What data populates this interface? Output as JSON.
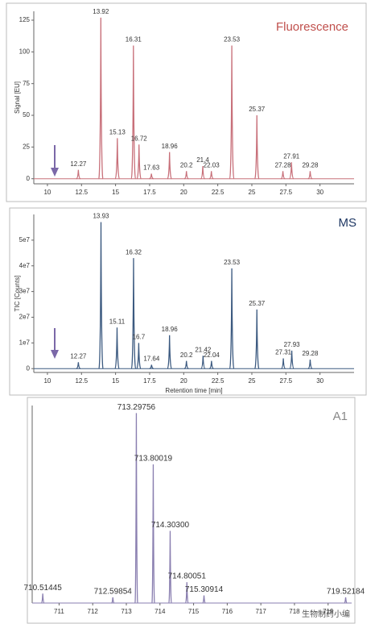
{
  "chart_data": [
    {
      "type": "spectrum",
      "title": "Fluorescence",
      "title_color": "#c0504d",
      "color": "#c8707a",
      "y_label": "Signal [EU]",
      "x": [
        12.27,
        13.92,
        15.13,
        16.31,
        16.72,
        17.63,
        18.96,
        20.2,
        21.4,
        22.03,
        23.53,
        25.37,
        27.28,
        27.91,
        29.28
      ],
      "values": [
        7,
        127,
        32,
        105,
        27,
        4,
        21,
        6,
        10,
        6,
        105,
        50,
        6,
        13,
        6
      ],
      "xlim": [
        9,
        32.5
      ],
      "xticks": [
        10,
        12.5,
        15,
        17.5,
        20,
        22.5,
        25,
        27.5,
        30
      ],
      "ylim": [
        -4,
        132
      ],
      "yticks": [
        0,
        25,
        50,
        75,
        100,
        125
      ]
    },
    {
      "type": "spectrum",
      "title": "MS",
      "title_color": "#1f3864",
      "color": "#3c5a80",
      "y_label": "TIC [Counts]",
      "x_label": "Retention time [min]",
      "x": [
        12.27,
        13.93,
        15.11,
        16.32,
        16.7,
        17.64,
        18.96,
        20.2,
        21.42,
        22.04,
        23.53,
        25.37,
        27.31,
        27.93,
        29.28
      ],
      "values": [
        2500000,
        57000000,
        16000000,
        43000000,
        10000000,
        1500000,
        13000000,
        3000000,
        5000000,
        3000000,
        39000000,
        23000000,
        4000000,
        7000000,
        3500000
      ],
      "xlim": [
        9,
        32.5
      ],
      "xticks": [
        10,
        12.5,
        15,
        17.5,
        20,
        22.5,
        25,
        27.5,
        30
      ],
      "ylim": [
        -1500000,
        60000000
      ],
      "yticks": [
        0,
        {
          "value": 10000000,
          "label": "1e7"
        },
        {
          "value": 20000000,
          "label": "2e7"
        },
        {
          "value": 30000000,
          "label": "3e7"
        },
        {
          "value": 40000000,
          "label": "4e7"
        },
        {
          "value": 50000000,
          "label": "5e7"
        }
      ]
    },
    {
      "type": "spectrum",
      "title": "A1",
      "title_color": "#888888",
      "color": "#8a7fb0",
      "x": [
        710.51445,
        712.59854,
        713.29756,
        713.80019,
        714.303,
        714.80051,
        715.30914,
        719.52184
      ],
      "x_labels": [
        "710.51445",
        "712.59854",
        "713.29756",
        "713.80019",
        "714.30300",
        "714.80051",
        "715.30914",
        "719.52184"
      ],
      "values": [
        5,
        3,
        100,
        73,
        38,
        11,
        4,
        3
      ],
      "xlim": [
        710.2,
        719.7
      ],
      "xticks": [
        711,
        712,
        713,
        714,
        715,
        716,
        717,
        718,
        719
      ],
      "ylim": [
        0,
        104
      ],
      "watermark": "生物制药小编"
    }
  ]
}
